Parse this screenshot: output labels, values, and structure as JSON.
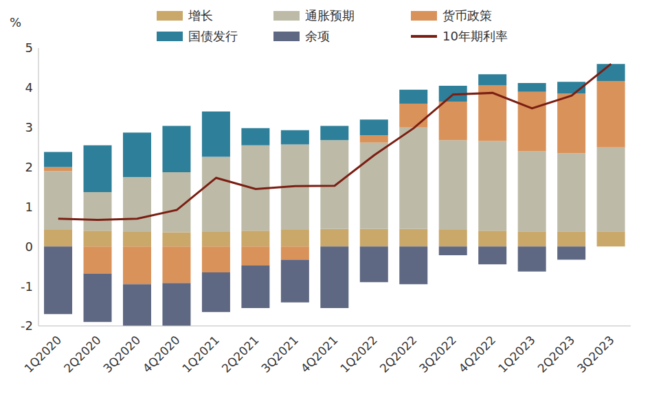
{
  "chart_data": {
    "type": "bar",
    "stacked": true,
    "legend": "top",
    "grid": false,
    "ylabel": "%",
    "categories": [
      "1Q2020",
      "2Q2020",
      "3Q2020",
      "4Q2020",
      "1Q2021",
      "2Q2021",
      "3Q2021",
      "4Q2021",
      "1Q2022",
      "2Q2022",
      "3Q2022",
      "4Q2022",
      "1Q2023",
      "2Q2023",
      "3Q2023"
    ],
    "ylim": [
      -2,
      5
    ],
    "yticks": [
      -2,
      -1,
      0,
      1,
      2,
      3,
      4,
      5
    ],
    "series": [
      {
        "name": "增长",
        "color": "#C9A86A",
        "values": [
          0.42,
          0.4,
          0.37,
          0.36,
          0.37,
          0.4,
          0.42,
          0.44,
          0.44,
          0.44,
          0.42,
          0.4,
          0.38,
          0.38,
          0.38
        ]
      },
      {
        "name": "通胀预期",
        "color": "#BDBBA8",
        "values": [
          1.48,
          0.97,
          1.38,
          1.51,
          1.89,
          2.15,
          2.15,
          2.24,
          2.18,
          2.56,
          2.26,
          2.26,
          2.02,
          1.97,
          2.12
        ]
      },
      {
        "name": "货币政策",
        "color": "#D9925A",
        "values": [
          0.1,
          -0.68,
          -0.95,
          -0.92,
          -0.65,
          -0.48,
          -0.33,
          0,
          0.18,
          0.6,
          0.97,
          1.4,
          1.5,
          1.5,
          1.67
        ]
      },
      {
        "name": "国债发行",
        "color": "#2E7F99",
        "values": [
          0.38,
          1.18,
          1.12,
          1.17,
          1.14,
          0.43,
          0.36,
          0.36,
          0.4,
          0.35,
          0.4,
          0.28,
          0.22,
          0.3,
          0.43
        ]
      },
      {
        "name": "余项",
        "color": "#5F6882",
        "values": [
          -1.7,
          -1.22,
          -1.07,
          -1.1,
          -1.0,
          -1.07,
          -1.08,
          -1.55,
          -0.9,
          -0.95,
          -0.22,
          -0.45,
          -0.63,
          -0.33,
          0
        ]
      },
      {
        "name": "10年期利率",
        "type": "line",
        "color": "#7B1E12",
        "values": [
          0.7,
          0.67,
          0.7,
          0.92,
          1.73,
          1.45,
          1.52,
          1.53,
          2.3,
          2.98,
          3.83,
          3.87,
          3.48,
          3.8,
          4.6
        ]
      }
    ]
  }
}
